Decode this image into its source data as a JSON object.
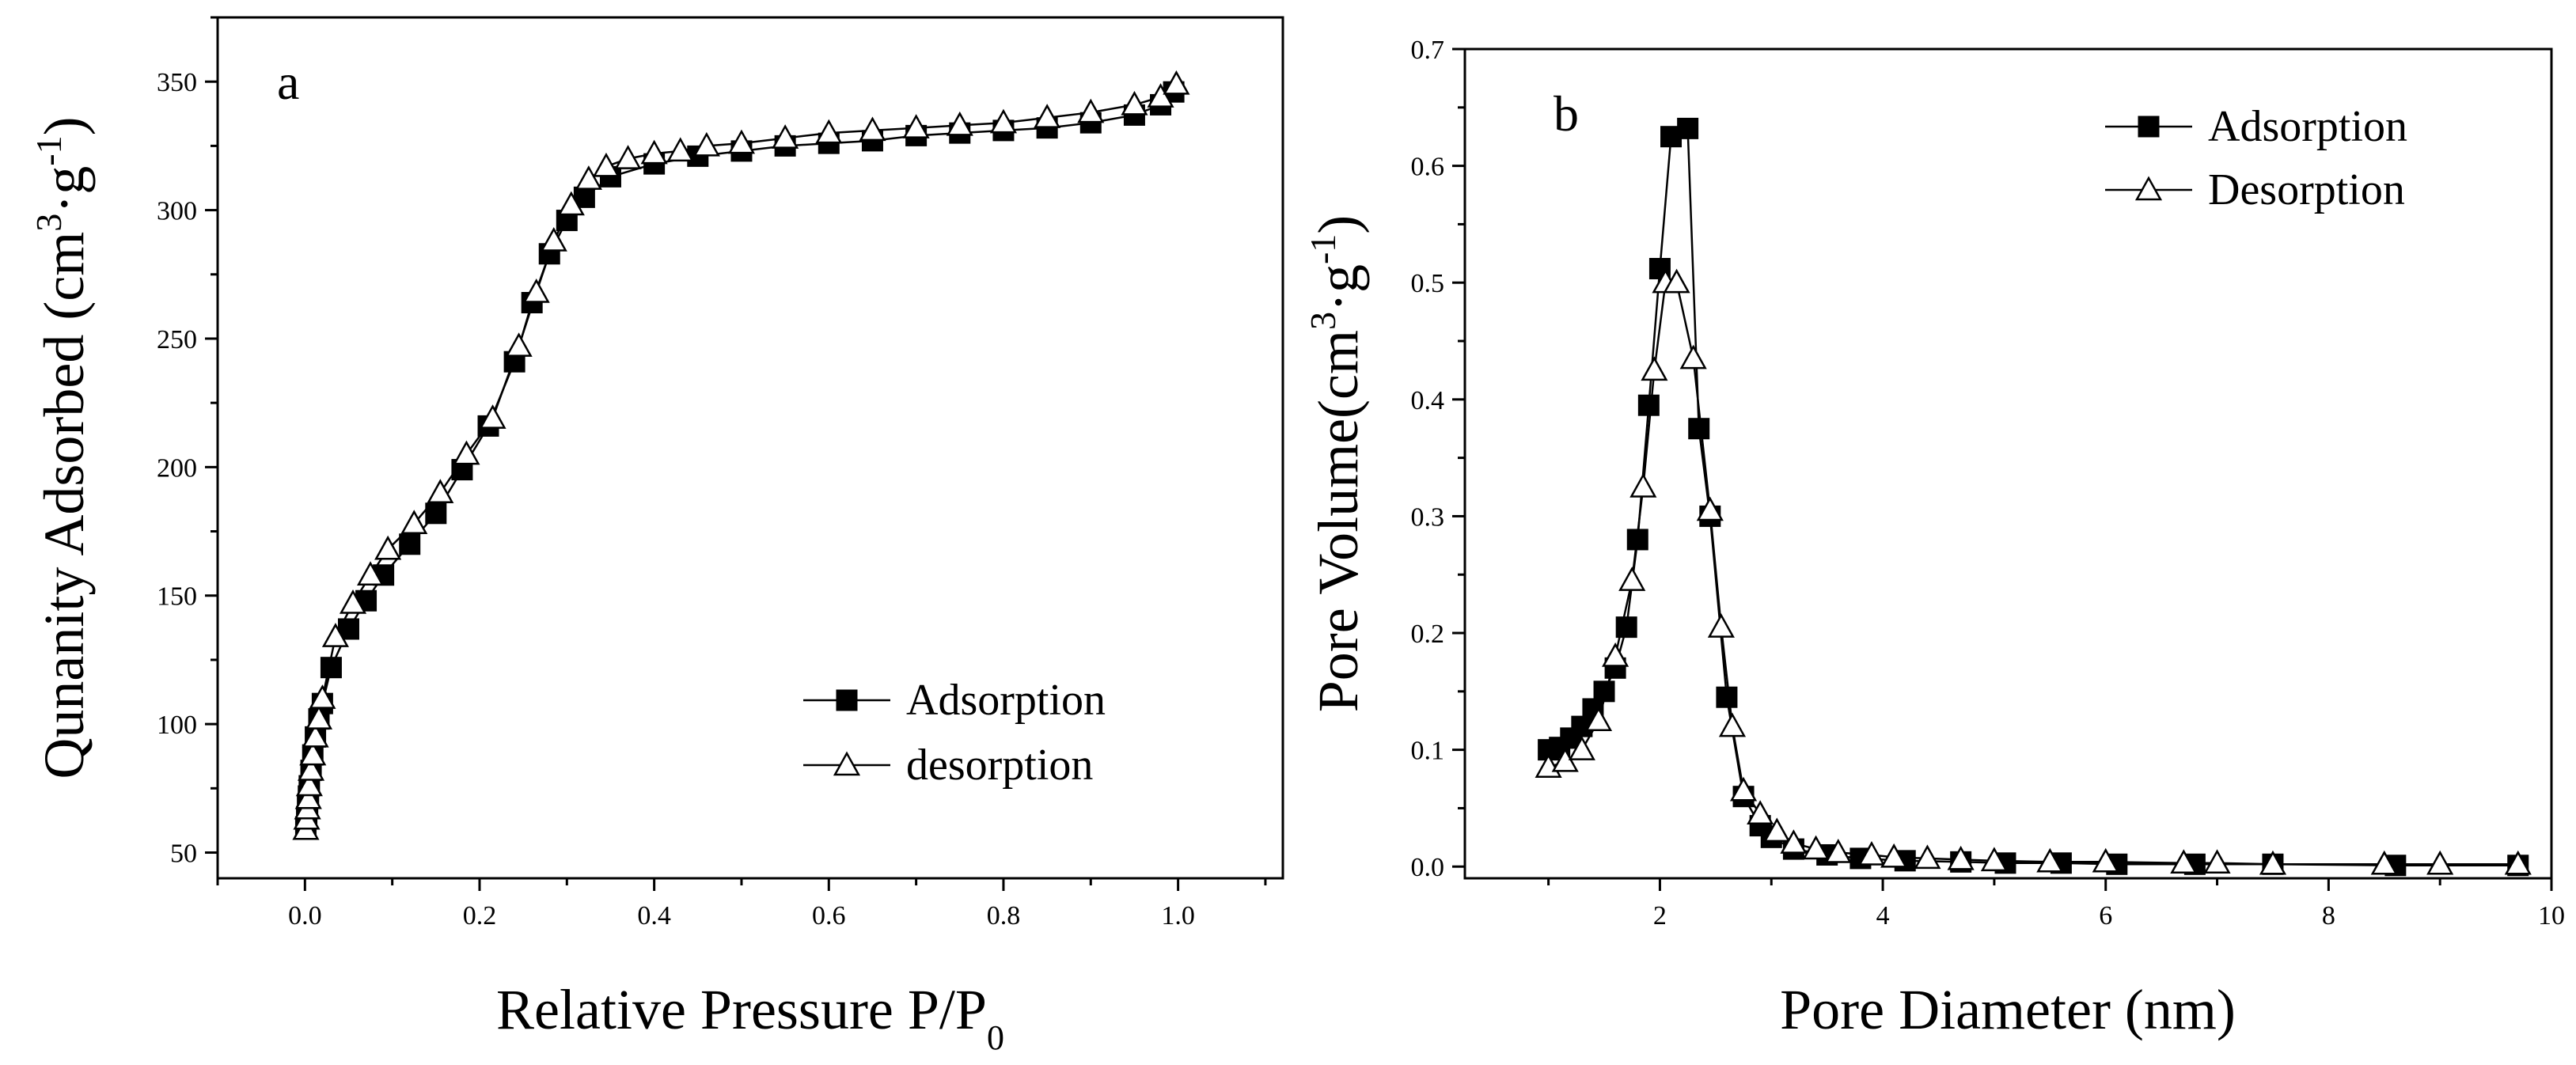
{
  "chart_data": [
    {
      "panel": "a",
      "type": "line",
      "xlabel_text": "Relative Pressure P/P",
      "xlabel_sub": "0",
      "ylabel_text": "Qunanity Adsorbed (cm",
      "ylabel_sup1": "3",
      "ylabel_mid": "·g",
      "ylabel_sup2": "-1",
      "ylabel_end": ")",
      "xlim": [
        -0.1,
        1.12
      ],
      "ylim": [
        40,
        375
      ],
      "xticks": [
        0.0,
        0.2,
        0.4,
        0.6,
        0.8,
        1.0
      ],
      "xtick_labels": [
        "0.0",
        "0.2",
        "0.4",
        "0.6",
        "0.8",
        "1.0"
      ],
      "yticks": [
        50,
        100,
        150,
        200,
        250,
        300,
        350
      ],
      "ytick_labels": [
        "50",
        "100",
        "150",
        "200",
        "250",
        "300",
        "350"
      ],
      "legend_position": "center-right",
      "series": [
        {
          "name": "Adsorption",
          "marker": "filled-square",
          "x": [
            0.001,
            0.002,
            0.003,
            0.004,
            0.005,
            0.007,
            0.009,
            0.012,
            0.016,
            0.02,
            0.03,
            0.05,
            0.07,
            0.09,
            0.12,
            0.15,
            0.18,
            0.21,
            0.24,
            0.26,
            0.28,
            0.3,
            0.32,
            0.35,
            0.4,
            0.45,
            0.5,
            0.55,
            0.6,
            0.65,
            0.7,
            0.75,
            0.8,
            0.85,
            0.9,
            0.95,
            0.98,
            0.995
          ],
          "y": [
            60,
            64,
            68,
            72,
            76,
            82,
            88,
            95,
            102,
            108,
            122,
            137,
            148,
            158,
            170,
            182,
            199,
            216,
            241,
            264,
            283,
            296,
            305,
            313,
            318,
            321,
            323,
            325,
            326,
            327,
            329,
            330,
            331,
            332,
            334,
            337,
            341,
            346
          ]
        },
        {
          "name": "desorption",
          "marker": "open-triangle",
          "x": [
            0.001,
            0.002,
            0.003,
            0.004,
            0.005,
            0.007,
            0.009,
            0.012,
            0.016,
            0.02,
            0.035,
            0.055,
            0.075,
            0.095,
            0.125,
            0.155,
            0.185,
            0.215,
            0.245,
            0.265,
            0.285,
            0.305,
            0.325,
            0.345,
            0.37,
            0.4,
            0.43,
            0.46,
            0.5,
            0.55,
            0.6,
            0.65,
            0.7,
            0.75,
            0.8,
            0.85,
            0.9,
            0.95,
            0.98,
            0.998
          ],
          "y": [
            59,
            63,
            67,
            71,
            76,
            82,
            88,
            95,
            102,
            110,
            134,
            147,
            158,
            168,
            178,
            190,
            205,
            219,
            247,
            268,
            288,
            302,
            312,
            317,
            320,
            322,
            323,
            325,
            326,
            328,
            330,
            331,
            332,
            333,
            334,
            336,
            338,
            341,
            344,
            349
          ]
        }
      ]
    },
    {
      "panel": "b",
      "type": "line",
      "xlabel_text": "Pore Diameter (nm)",
      "ylabel_text": "Pore Volume(cm",
      "ylabel_sup1": "3",
      "ylabel_mid": "·g",
      "ylabel_sup2": "-1",
      "ylabel_end": ")",
      "xlim": [
        0.25,
        10
      ],
      "ylim": [
        -0.01,
        0.7
      ],
      "xticks": [
        2,
        4,
        6,
        8,
        10
      ],
      "xtick_labels": [
        "2",
        "4",
        "6",
        "8",
        "10"
      ],
      "yticks": [
        0.0,
        0.1,
        0.2,
        0.3,
        0.4,
        0.5,
        0.6,
        0.7
      ],
      "ytick_labels": [
        "0.0",
        "0.1",
        "0.2",
        "0.3",
        "0.4",
        "0.5",
        "0.6",
        "0.7"
      ],
      "legend_position": "top-right",
      "series": [
        {
          "name": "Adsorption",
          "marker": "filled-square",
          "x": [
            1.0,
            1.1,
            1.2,
            1.3,
            1.4,
            1.5,
            1.6,
            1.7,
            1.8,
            1.9,
            2.0,
            2.1,
            2.25,
            2.35,
            2.45,
            2.6,
            2.75,
            2.9,
            3.0,
            3.2,
            3.5,
            3.8,
            4.2,
            4.7,
            5.1,
            5.6,
            6.1,
            6.8,
            7.5,
            8.6,
            9.7
          ],
          "y": [
            0.1,
            0.102,
            0.11,
            0.12,
            0.135,
            0.15,
            0.17,
            0.205,
            0.28,
            0.395,
            0.512,
            0.625,
            0.632,
            0.375,
            0.3,
            0.145,
            0.06,
            0.035,
            0.025,
            0.015,
            0.01,
            0.007,
            0.005,
            0.004,
            0.003,
            0.003,
            0.002,
            0.002,
            0.002,
            0.001,
            0.001
          ]
        },
        {
          "name": "Desorption",
          "marker": "open-triangle",
          "x": [
            1.0,
            1.15,
            1.3,
            1.45,
            1.6,
            1.75,
            1.85,
            1.95,
            2.05,
            2.15,
            2.3,
            2.45,
            2.55,
            2.65,
            2.75,
            2.9,
            3.05,
            3.2,
            3.4,
            3.6,
            3.9,
            4.1,
            4.4,
            4.7,
            5.0,
            5.5,
            6.0,
            6.7,
            7.0,
            7.5,
            8.5,
            9.0,
            9.7
          ],
          "y": [
            0.085,
            0.09,
            0.1,
            0.125,
            0.18,
            0.245,
            0.325,
            0.425,
            0.5,
            0.5,
            0.435,
            0.305,
            0.205,
            0.12,
            0.065,
            0.045,
            0.03,
            0.02,
            0.015,
            0.012,
            0.01,
            0.008,
            0.007,
            0.006,
            0.005,
            0.004,
            0.004,
            0.003,
            0.003,
            0.002,
            0.002,
            0.002,
            0.002
          ]
        }
      ]
    }
  ]
}
